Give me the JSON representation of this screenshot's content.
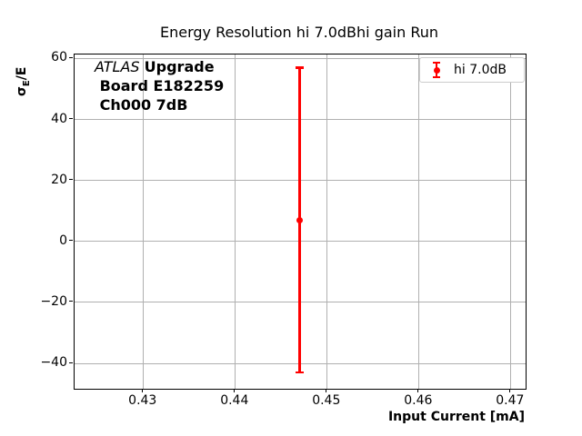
{
  "chart_data": {
    "type": "scatter",
    "title": "Energy Resolution hi 7.0dBhi gain Run",
    "xlabel": "Input Current [mA]",
    "ylabel": "σ_E/E",
    "ylabel_parts": {
      "sigma": "σ",
      "sub": "E",
      "rest": "/E"
    },
    "xlim": [
      0.4225,
      0.4716
    ],
    "ylim": [
      -48.3,
      61.3
    ],
    "x_ticks": [
      0.43,
      0.44,
      0.45,
      0.46,
      0.47
    ],
    "x_tick_labels": [
      "0.43",
      "0.44",
      "0.45",
      "0.46",
      "0.47"
    ],
    "y_ticks": [
      -40,
      -20,
      0,
      20,
      40,
      60
    ],
    "y_tick_labels": [
      "−40",
      "−20",
      "0",
      "20",
      "40",
      "60"
    ],
    "grid": true,
    "colors": {
      "grid": "#b0b0b0",
      "spine": "#000000",
      "series": "#ff0000",
      "legend_border": "#cccccc"
    },
    "series": [
      {
        "name": "hi 7.0dB",
        "color": "#ff0000",
        "marker": "circle-with-errorbar",
        "points": [
          {
            "x": 0.447,
            "y": 7,
            "yerr": 50
          }
        ]
      }
    ],
    "legend": {
      "position": "upper right",
      "entries": [
        {
          "label": "hi 7.0dB",
          "color": "#ff0000"
        }
      ]
    },
    "annotation": {
      "line1_italic": "ATLAS ",
      "line1_bold": "Upgrade",
      "line2": " Board E182259",
      "line3": " Ch000 7dB"
    }
  }
}
